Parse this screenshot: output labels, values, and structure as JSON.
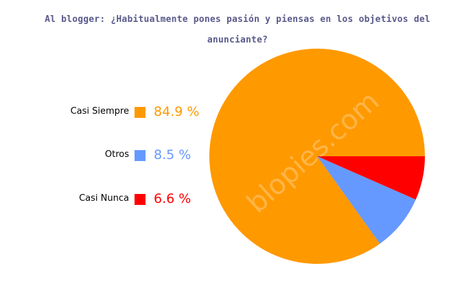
{
  "chart_data": {
    "type": "pie",
    "title": "Al blogger: ¿Habitualmente pones pasión y piensas en los objetivos del anunciante?",
    "title_lines": [
      "Al blogger: ¿Habitualmente pones pasión y piensas en los objetivos del",
      "anunciante?"
    ],
    "categories": [
      "Casi Siempre",
      "Otros",
      "Casi Nunca"
    ],
    "values": [
      84.9,
      8.5,
      6.6
    ],
    "labels": [
      "84.9 %",
      "8.5 %",
      "6.6 %"
    ],
    "colors": [
      "#ff9900",
      "#6699ff",
      "#ff0000"
    ],
    "legend_position": "left",
    "watermark": "blopies.com"
  }
}
